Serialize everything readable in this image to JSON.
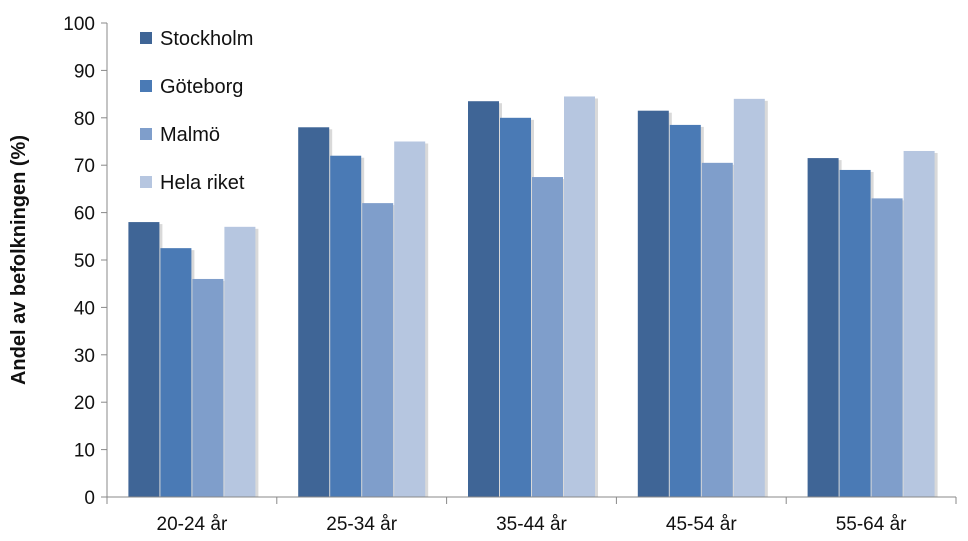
{
  "chart_data": {
    "type": "bar",
    "title": "",
    "xlabel": "",
    "ylabel": "Andel av befolkningen (%)",
    "ylim": [
      0,
      100
    ],
    "yticks": [
      0,
      10,
      20,
      30,
      40,
      50,
      60,
      70,
      80,
      90,
      100
    ],
    "categories": [
      "20-24 år",
      "25-34 år",
      "35-44 år",
      "45-54 år",
      "55-64 år"
    ],
    "series": [
      {
        "name": "Stockholm",
        "color": "#3f6596",
        "values": [
          58,
          78,
          83.5,
          81.5,
          71.5
        ]
      },
      {
        "name": "Göteborg",
        "color": "#4a7ab5",
        "values": [
          52.5,
          72,
          80,
          78.5,
          69
        ]
      },
      {
        "name": "Malmö",
        "color": "#7f9ecb",
        "values": [
          46,
          62,
          67.5,
          70.5,
          63
        ]
      },
      {
        "name": "Hela riket",
        "color": "#b6c6e0",
        "values": [
          57,
          75,
          84.5,
          84,
          73
        ]
      }
    ],
    "grid": false,
    "legend": "top-left"
  }
}
